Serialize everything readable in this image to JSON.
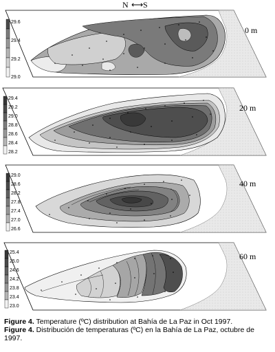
{
  "header": {
    "north": "N",
    "south": "S",
    "arrow": "⟷"
  },
  "colorbar_colors": [
    "#f2f2f2",
    "#d4d4d4",
    "#b6b6b6",
    "#989898",
    "#7c7c7c",
    "#606060",
    "#4a4a4a",
    "#383838"
  ],
  "panels": [
    {
      "depth": "0 m",
      "ticks": [
        "29.6",
        "29.4",
        "29.2",
        "29.0"
      ]
    },
    {
      "depth": "20 m",
      "ticks": [
        "29.4",
        "29.2",
        "29.0",
        "28.8",
        "28.6",
        "28.4",
        "28.2"
      ]
    },
    {
      "depth": "40 m",
      "ticks": [
        "29.0",
        "28.6",
        "28.2",
        "27.8",
        "27.4",
        "27.0",
        "26.6"
      ]
    },
    {
      "depth": "60 m",
      "ticks": [
        "25.4",
        "25.0",
        "24.6",
        "24.2",
        "23.8",
        "23.4",
        "23.0"
      ]
    }
  ],
  "caption": {
    "en_label": "Figure 4.",
    "en_text": " Temperature (ºC) distribution at Bahía de La Paz in Oct 1997.",
    "es_label": "Figure 4.",
    "es_text": " Distribución de temperaturas (ºC) en la Bahía de La Paz, octubre de 1997."
  }
}
